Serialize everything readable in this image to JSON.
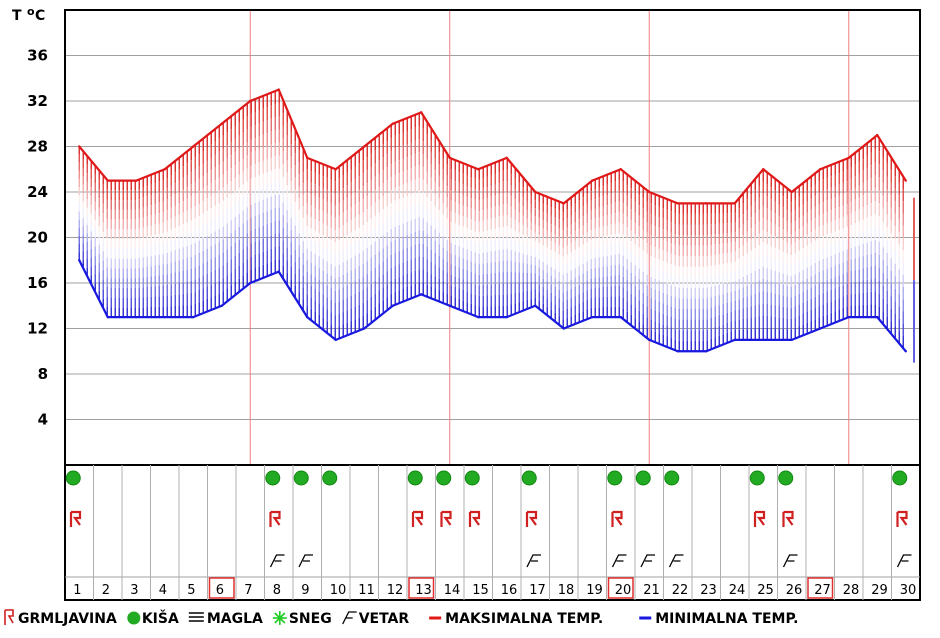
{
  "chart_data": {
    "type": "line",
    "unit_label_t": "T",
    "unit_label_o": "o",
    "unit_label_c": "C",
    "ylim": [
      0,
      40
    ],
    "yticks": [
      4,
      8,
      12,
      16,
      20,
      24,
      28,
      32,
      36
    ],
    "x": [
      1,
      2,
      3,
      4,
      5,
      6,
      7,
      8,
      9,
      10,
      11,
      12,
      13,
      14,
      15,
      16,
      17,
      18,
      19,
      20,
      21,
      22,
      23,
      24,
      25,
      26,
      27,
      28,
      29,
      30
    ],
    "highlighted_days": [
      6,
      13,
      20,
      27
    ],
    "series": [
      {
        "name": "MAKSIMALNA TEMP.",
        "color": "#e01818",
        "values": [
          28,
          25,
          25,
          26,
          28,
          30,
          32,
          33,
          27,
          26,
          28,
          30,
          31,
          27,
          26,
          27,
          24,
          23,
          25,
          26,
          24,
          23,
          23,
          23,
          26,
          24,
          26,
          27,
          29,
          25
        ]
      },
      {
        "name": "MINIMALNA TEMP.",
        "color": "#1818e0",
        "values": [
          18,
          13,
          13,
          13,
          13,
          14,
          16,
          17,
          13,
          11,
          12,
          14,
          15,
          14,
          13,
          13,
          14,
          12,
          13,
          13,
          11,
          10,
          10,
          11,
          11,
          11,
          12,
          13,
          13,
          10
        ]
      }
    ],
    "trailing_bar": {
      "max": 23.5,
      "min": 9
    },
    "weather": {
      "rain": [
        1,
        8,
        9,
        10,
        13,
        14,
        15,
        17,
        20,
        21,
        22,
        25,
        26,
        30
      ],
      "thunder": [
        1,
        8,
        13,
        14,
        15,
        17,
        20,
        25,
        26,
        30
      ],
      "wind": [
        8,
        9,
        17,
        20,
        21,
        22,
        26,
        30
      ]
    },
    "legend": [
      {
        "key": "thunder",
        "label": "GRMLJAVINA"
      },
      {
        "key": "rain",
        "label": "KIŠA"
      },
      {
        "key": "fog",
        "label": "MAGLA"
      },
      {
        "key": "snow",
        "label": "SNEG"
      },
      {
        "key": "wind",
        "label": "VETAR"
      },
      {
        "key": "max",
        "label": "MAKSIMALNA TEMP."
      },
      {
        "key": "min",
        "label": "MINIMALNA TEMP."
      }
    ]
  }
}
